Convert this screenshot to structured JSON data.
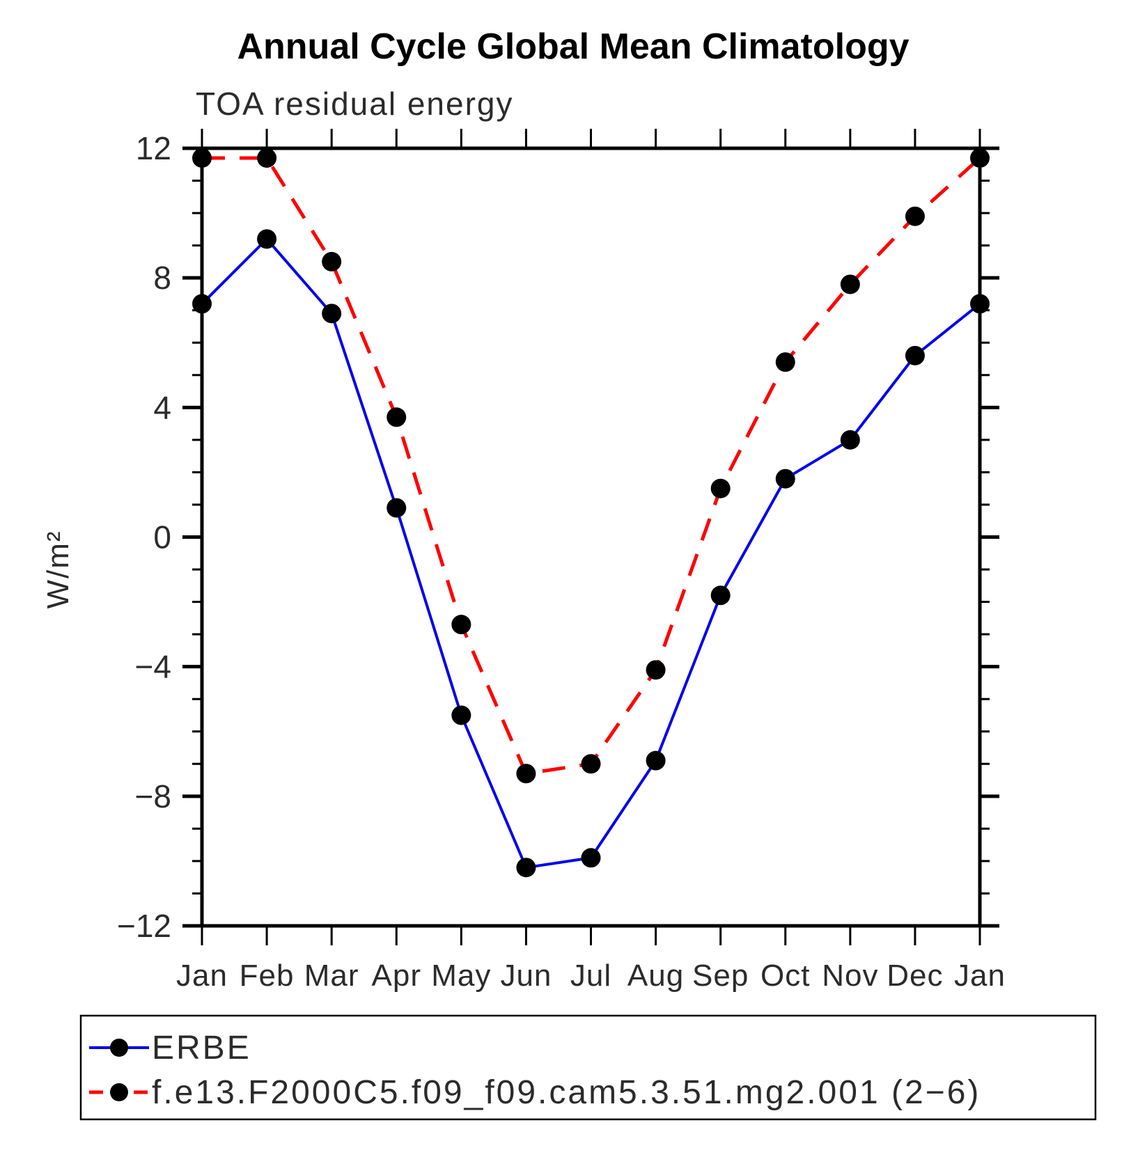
{
  "page": {
    "title": "Annual Cycle Global Mean Climatology",
    "subtitle": "TOA residual energy"
  },
  "chart_data": {
    "type": "line",
    "title": "Annual Cycle Global Mean Climatology",
    "subtitle": "TOA residual energy",
    "xlabel": "",
    "ylabel": "W/m²",
    "ylim": [
      -12,
      12
    ],
    "y_major_ticks": [
      12,
      8,
      4,
      0,
      -4,
      -8,
      -12
    ],
    "y_minor_step": 1,
    "grid": "off",
    "legend_position": "bottom-box",
    "x_categories": [
      "Jan",
      "Feb",
      "Mar",
      "Apr",
      "May",
      "Jun",
      "Jul",
      "Aug",
      "Sep",
      "Oct",
      "Nov",
      "Dec",
      "Jan"
    ],
    "series": [
      {
        "name": "ERBE",
        "line_color": "#0000ee",
        "line_style": "solid",
        "marker": "circle",
        "marker_color": "#000000",
        "values": [
          7.2,
          9.2,
          6.9,
          0.9,
          -5.5,
          -10.2,
          -9.9,
          -6.9,
          -1.8,
          1.8,
          3.0,
          5.6,
          7.2
        ]
      },
      {
        "name": "f.e13.F2000C5.f09_f09.cam5.3.51.mg2.001 (2−6)",
        "line_color": "#ff0000",
        "line_style": "dashed",
        "marker": "circle",
        "marker_color": "#000000",
        "values": [
          11.7,
          11.7,
          8.5,
          3.7,
          -2.7,
          -7.3,
          -7.0,
          -4.1,
          1.5,
          5.4,
          7.8,
          9.9,
          11.7
        ]
      }
    ]
  }
}
